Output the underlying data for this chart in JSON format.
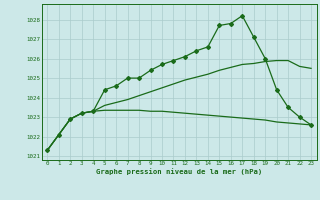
{
  "title": "Graphe pression niveau de la mer (hPa)",
  "background_color": "#cce8e8",
  "grid_color": "#aacccc",
  "line_color": "#1a6b1a",
  "xlim": [
    -0.5,
    23.5
  ],
  "ylim": [
    1020.8,
    1028.8
  ],
  "yticks": [
    1021,
    1022,
    1023,
    1024,
    1025,
    1026,
    1027,
    1028
  ],
  "xticks": [
    0,
    1,
    2,
    3,
    4,
    5,
    6,
    7,
    8,
    9,
    10,
    11,
    12,
    13,
    14,
    15,
    16,
    17,
    18,
    19,
    20,
    21,
    22,
    23
  ],
  "series1_x": [
    0,
    1,
    2,
    3,
    4,
    5,
    6,
    7,
    8,
    9,
    10,
    11,
    12,
    13,
    14,
    15,
    16,
    17,
    18,
    19,
    20,
    21,
    22,
    23
  ],
  "series1_y": [
    1021.3,
    1022.1,
    1022.9,
    1023.2,
    1023.3,
    1024.4,
    1024.6,
    1025.0,
    1025.0,
    1025.4,
    1025.7,
    1025.9,
    1026.1,
    1026.4,
    1026.6,
    1027.7,
    1027.8,
    1028.2,
    1027.1,
    1026.0,
    1024.4,
    1023.5,
    1023.0,
    1022.6
  ],
  "series2_x": [
    0,
    1,
    2,
    3,
    4,
    5,
    6,
    7,
    8,
    9,
    10,
    11,
    12,
    13,
    14,
    15,
    16,
    17,
    18,
    19,
    20,
    21,
    22,
    23
  ],
  "series2_y": [
    1021.3,
    1022.1,
    1022.9,
    1023.2,
    1023.3,
    1023.35,
    1023.35,
    1023.35,
    1023.35,
    1023.3,
    1023.3,
    1023.25,
    1023.2,
    1023.15,
    1023.1,
    1023.05,
    1023.0,
    1022.95,
    1022.9,
    1022.85,
    1022.75,
    1022.7,
    1022.65,
    1022.6
  ],
  "series3_x": [
    0,
    1,
    2,
    3,
    4,
    5,
    6,
    7,
    8,
    9,
    10,
    11,
    12,
    13,
    14,
    15,
    16,
    17,
    18,
    19,
    20,
    21,
    22,
    23
  ],
  "series3_y": [
    1021.3,
    1022.1,
    1022.9,
    1023.2,
    1023.3,
    1023.6,
    1023.75,
    1023.9,
    1024.1,
    1024.3,
    1024.5,
    1024.7,
    1024.9,
    1025.05,
    1025.2,
    1025.4,
    1025.55,
    1025.7,
    1025.75,
    1025.85,
    1025.9,
    1025.9,
    1025.6,
    1025.5
  ]
}
